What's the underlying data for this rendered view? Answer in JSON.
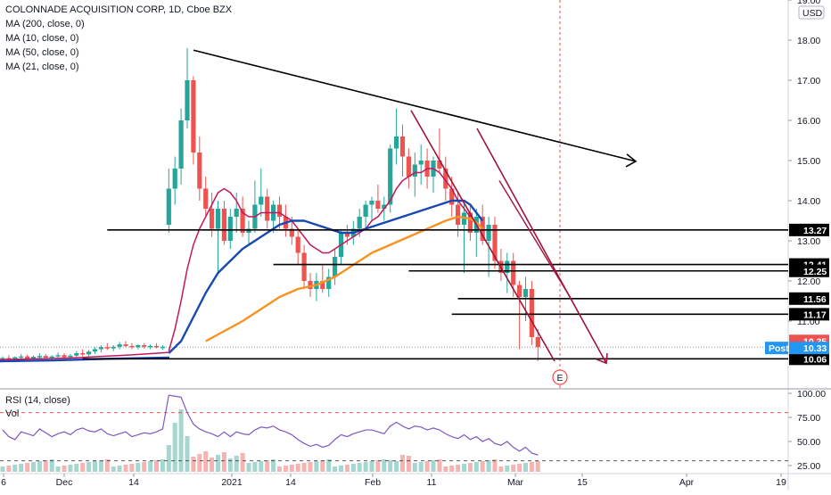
{
  "legend": {
    "title": "COLONNADE ACQUISITION CORP, 1D, Cboe BZX",
    "ma200": "MA (200, close, 0)",
    "ma10": "MA (10, close, 0)",
    "ma50": "MA (50, close, 0)",
    "ma21": "MA (21, close, 0)"
  },
  "rsi_legend": {
    "label": "RSI (14, close)",
    "vol": "Vol"
  },
  "currency_badge": "USD",
  "colors": {
    "up": "#26a69a",
    "down": "#ef5350",
    "ma_blue": "#1848b0",
    "ma_orange": "#f7931e",
    "ma_crimson": "#c2185b",
    "trend": "#000000",
    "channel": "#a0143c",
    "rsi_line": "#7e57c2",
    "level_badge": "#000000",
    "price_badge": "#ef5350",
    "post_badge": "#2196f3"
  },
  "chart_data": {
    "type": "candlestick",
    "y_axis": {
      "ticks": [
        "19.00",
        "18.00",
        "17.00",
        "16.00",
        "15.00",
        "14.00",
        "13.00",
        "12.00",
        "11.00"
      ],
      "ylim": [
        9.7,
        19.0
      ]
    },
    "x_axis": {
      "ticks": [
        "6",
        "Dec",
        "14",
        "2021",
        "14",
        "Feb",
        "11",
        "Mar",
        "15",
        "Apr",
        "19"
      ]
    },
    "candles": [
      {
        "o": 10.05,
        "h": 10.12,
        "l": 10.0,
        "c": 10.08
      },
      {
        "o": 10.08,
        "h": 10.15,
        "l": 10.02,
        "c": 10.06
      },
      {
        "o": 10.06,
        "h": 10.12,
        "l": 10.0,
        "c": 10.1
      },
      {
        "o": 10.1,
        "h": 10.18,
        "l": 10.05,
        "c": 10.12
      },
      {
        "o": 10.12,
        "h": 10.16,
        "l": 10.04,
        "c": 10.07
      },
      {
        "o": 10.07,
        "h": 10.14,
        "l": 10.02,
        "c": 10.11
      },
      {
        "o": 10.11,
        "h": 10.2,
        "l": 10.06,
        "c": 10.13
      },
      {
        "o": 10.13,
        "h": 10.18,
        "l": 10.05,
        "c": 10.09
      },
      {
        "o": 10.09,
        "h": 10.15,
        "l": 10.04,
        "c": 10.12
      },
      {
        "o": 10.12,
        "h": 10.22,
        "l": 10.08,
        "c": 10.15
      },
      {
        "o": 10.15,
        "h": 10.2,
        "l": 10.08,
        "c": 10.1
      },
      {
        "o": 10.1,
        "h": 10.18,
        "l": 10.05,
        "c": 10.14
      },
      {
        "o": 10.14,
        "h": 10.25,
        "l": 10.1,
        "c": 10.2
      },
      {
        "o": 10.2,
        "h": 10.3,
        "l": 10.12,
        "c": 10.17
      },
      {
        "o": 10.17,
        "h": 10.28,
        "l": 10.12,
        "c": 10.24
      },
      {
        "o": 10.24,
        "h": 10.35,
        "l": 10.18,
        "c": 10.3
      },
      {
        "o": 10.3,
        "h": 10.4,
        "l": 10.22,
        "c": 10.35
      },
      {
        "o": 10.35,
        "h": 10.45,
        "l": 10.28,
        "c": 10.32
      },
      {
        "o": 10.32,
        "h": 10.4,
        "l": 10.25,
        "c": 10.36
      },
      {
        "o": 10.36,
        "h": 10.48,
        "l": 10.3,
        "c": 10.42
      },
      {
        "o": 10.42,
        "h": 10.5,
        "l": 10.35,
        "c": 10.38
      },
      {
        "o": 10.38,
        "h": 10.45,
        "l": 10.3,
        "c": 10.35
      },
      {
        "o": 10.35,
        "h": 10.42,
        "l": 10.3,
        "c": 10.4
      },
      {
        "o": 10.4,
        "h": 10.45,
        "l": 10.32,
        "c": 10.36
      },
      {
        "o": 10.36,
        "h": 10.42,
        "l": 10.3,
        "c": 10.38
      },
      {
        "o": 10.38,
        "h": 10.45,
        "l": 10.32,
        "c": 10.35
      },
      {
        "o": 10.35,
        "h": 10.4,
        "l": 10.28,
        "c": 10.36
      },
      {
        "o": 13.4,
        "h": 14.8,
        "l": 13.2,
        "c": 14.3
      },
      {
        "o": 14.3,
        "h": 15.1,
        "l": 13.9,
        "c": 14.8
      },
      {
        "o": 14.8,
        "h": 16.3,
        "l": 14.4,
        "c": 16.0
      },
      {
        "o": 16.0,
        "h": 17.8,
        "l": 15.8,
        "c": 17.0
      },
      {
        "o": 17.0,
        "h": 17.1,
        "l": 14.9,
        "c": 15.2
      },
      {
        "o": 15.2,
        "h": 15.6,
        "l": 14.0,
        "c": 14.3
      },
      {
        "o": 14.3,
        "h": 14.6,
        "l": 13.6,
        "c": 13.8
      },
      {
        "o": 13.8,
        "h": 14.2,
        "l": 13.1,
        "c": 13.3
      },
      {
        "o": 13.3,
        "h": 14.0,
        "l": 12.2,
        "c": 13.8
      },
      {
        "o": 13.8,
        "h": 14.0,
        "l": 12.9,
        "c": 13.0
      },
      {
        "o": 13.0,
        "h": 13.8,
        "l": 12.8,
        "c": 13.6
      },
      {
        "o": 13.6,
        "h": 14.2,
        "l": 13.2,
        "c": 13.8
      },
      {
        "o": 13.8,
        "h": 14.1,
        "l": 13.1,
        "c": 13.2
      },
      {
        "o": 13.2,
        "h": 13.5,
        "l": 12.9,
        "c": 13.3
      },
      {
        "o": 13.3,
        "h": 14.5,
        "l": 13.2,
        "c": 13.9
      },
      {
        "o": 13.9,
        "h": 14.8,
        "l": 13.6,
        "c": 14.1
      },
      {
        "o": 14.1,
        "h": 14.3,
        "l": 13.3,
        "c": 13.5
      },
      {
        "o": 13.5,
        "h": 14.0,
        "l": 13.2,
        "c": 13.9
      },
      {
        "o": 13.9,
        "h": 14.1,
        "l": 13.3,
        "c": 13.6
      },
      {
        "o": 13.6,
        "h": 13.9,
        "l": 13.1,
        "c": 13.3
      },
      {
        "o": 13.3,
        "h": 13.6,
        "l": 12.9,
        "c": 13.1
      },
      {
        "o": 13.1,
        "h": 13.3,
        "l": 12.4,
        "c": 12.7
      },
      {
        "o": 12.7,
        "h": 12.9,
        "l": 11.8,
        "c": 12.0
      },
      {
        "o": 12.0,
        "h": 12.2,
        "l": 11.6,
        "c": 11.8
      },
      {
        "o": 11.8,
        "h": 12.2,
        "l": 11.5,
        "c": 12.0
      },
      {
        "o": 12.0,
        "h": 12.4,
        "l": 11.7,
        "c": 11.8
      },
      {
        "o": 11.8,
        "h": 12.3,
        "l": 11.6,
        "c": 12.1
      },
      {
        "o": 12.1,
        "h": 12.8,
        "l": 11.9,
        "c": 12.6
      },
      {
        "o": 12.6,
        "h": 13.3,
        "l": 12.4,
        "c": 13.2
      },
      {
        "o": 13.2,
        "h": 13.4,
        "l": 12.9,
        "c": 13.1
      },
      {
        "o": 13.1,
        "h": 13.5,
        "l": 12.9,
        "c": 13.3
      },
      {
        "o": 13.3,
        "h": 13.8,
        "l": 13.1,
        "c": 13.6
      },
      {
        "o": 13.6,
        "h": 14.0,
        "l": 13.3,
        "c": 13.9
      },
      {
        "o": 13.9,
        "h": 14.1,
        "l": 13.5,
        "c": 14.0
      },
      {
        "o": 14.0,
        "h": 14.4,
        "l": 13.7,
        "c": 13.8
      },
      {
        "o": 13.8,
        "h": 14.1,
        "l": 13.5,
        "c": 13.9
      },
      {
        "o": 13.9,
        "h": 15.4,
        "l": 13.7,
        "c": 15.3
      },
      {
        "o": 15.3,
        "h": 16.3,
        "l": 14.9,
        "c": 15.6
      },
      {
        "o": 15.6,
        "h": 15.9,
        "l": 14.6,
        "c": 15.1
      },
      {
        "o": 15.1,
        "h": 15.3,
        "l": 14.3,
        "c": 14.6
      },
      {
        "o": 14.6,
        "h": 15.2,
        "l": 14.1,
        "c": 14.9
      },
      {
        "o": 14.9,
        "h": 15.4,
        "l": 14.4,
        "c": 15.0
      },
      {
        "o": 15.0,
        "h": 15.3,
        "l": 14.3,
        "c": 14.6
      },
      {
        "o": 14.6,
        "h": 15.1,
        "l": 14.2,
        "c": 15.0
      },
      {
        "o": 15.0,
        "h": 15.8,
        "l": 14.7,
        "c": 14.8
      },
      {
        "o": 14.8,
        "h": 15.1,
        "l": 14.0,
        "c": 14.3
      },
      {
        "o": 14.3,
        "h": 14.6,
        "l": 13.6,
        "c": 13.9
      },
      {
        "o": 13.9,
        "h": 14.2,
        "l": 13.1,
        "c": 13.4
      },
      {
        "o": 13.4,
        "h": 13.9,
        "l": 12.2,
        "c": 13.7
      },
      {
        "o": 13.7,
        "h": 13.9,
        "l": 13.0,
        "c": 13.2
      },
      {
        "o": 13.2,
        "h": 13.8,
        "l": 12.6,
        "c": 13.6
      },
      {
        "o": 13.6,
        "h": 13.9,
        "l": 12.9,
        "c": 13.0
      },
      {
        "o": 13.0,
        "h": 13.6,
        "l": 12.1,
        "c": 13.4
      },
      {
        "o": 13.4,
        "h": 13.6,
        "l": 12.3,
        "c": 12.5
      },
      {
        "o": 12.5,
        "h": 12.8,
        "l": 12.0,
        "c": 12.2
      },
      {
        "o": 12.2,
        "h": 12.7,
        "l": 11.7,
        "c": 12.5
      },
      {
        "o": 12.5,
        "h": 12.7,
        "l": 11.6,
        "c": 11.9
      },
      {
        "o": 11.9,
        "h": 12.0,
        "l": 10.3,
        "c": 11.6
      },
      {
        "o": 11.6,
        "h": 12.1,
        "l": 11.0,
        "c": 11.8
      },
      {
        "o": 11.8,
        "h": 12.0,
        "l": 10.4,
        "c": 10.6
      },
      {
        "o": 10.6,
        "h": 10.8,
        "l": 10.0,
        "c": 10.35
      }
    ],
    "moving_averages": [
      {
        "name": "MA (10, close, 0)",
        "color": "crimson",
        "points": [
          [
            27,
            10.25
          ],
          [
            28,
            10.8
          ],
          [
            29,
            11.5
          ],
          [
            30,
            12.3
          ],
          [
            31,
            12.9
          ],
          [
            32,
            13.3
          ],
          [
            33,
            13.6
          ],
          [
            34,
            13.9
          ],
          [
            35,
            14.2
          ],
          [
            36,
            14.3
          ],
          [
            37,
            14.2
          ],
          [
            38,
            14.0
          ],
          [
            39,
            13.7
          ],
          [
            40,
            13.6
          ],
          [
            41,
            13.6
          ],
          [
            42,
            13.7
          ],
          [
            43,
            13.7
          ],
          [
            44,
            13.7
          ],
          [
            45,
            13.7
          ],
          [
            46,
            13.6
          ],
          [
            47,
            13.5
          ],
          [
            48,
            13.3
          ],
          [
            49,
            13.1
          ],
          [
            50,
            12.9
          ],
          [
            51,
            12.8
          ],
          [
            52,
            12.7
          ],
          [
            53,
            12.7
          ],
          [
            54,
            12.8
          ],
          [
            55,
            12.9
          ],
          [
            56,
            13.0
          ],
          [
            57,
            13.1
          ],
          [
            58,
            13.2
          ],
          [
            59,
            13.3
          ],
          [
            60,
            13.5
          ],
          [
            61,
            13.6
          ],
          [
            62,
            13.8
          ],
          [
            63,
            14.0
          ],
          [
            64,
            14.3
          ],
          [
            65,
            14.5
          ],
          [
            66,
            14.6
          ],
          [
            67,
            14.7
          ],
          [
            68,
            14.7
          ],
          [
            69,
            14.8
          ],
          [
            70,
            14.8
          ],
          [
            71,
            14.7
          ],
          [
            72,
            14.5
          ],
          [
            73,
            14.3
          ],
          [
            74,
            14.0
          ],
          [
            75,
            13.8
          ],
          [
            76,
            13.6
          ]
        ]
      },
      {
        "name": "MA (21, close, 0)",
        "color": "blue",
        "points": [
          [
            27,
            10.2
          ],
          [
            29,
            10.5
          ],
          [
            31,
            11.1
          ],
          [
            33,
            11.7
          ],
          [
            35,
            12.2
          ],
          [
            37,
            12.5
          ],
          [
            39,
            12.8
          ],
          [
            41,
            13.0
          ],
          [
            43,
            13.2
          ],
          [
            45,
            13.4
          ],
          [
            47,
            13.5
          ],
          [
            49,
            13.5
          ],
          [
            51,
            13.4
          ],
          [
            53,
            13.3
          ],
          [
            55,
            13.2
          ],
          [
            57,
            13.2
          ],
          [
            59,
            13.3
          ],
          [
            61,
            13.4
          ],
          [
            63,
            13.5
          ],
          [
            65,
            13.6
          ],
          [
            67,
            13.7
          ],
          [
            69,
            13.8
          ],
          [
            71,
            13.9
          ],
          [
            73,
            14.0
          ],
          [
            75,
            14.0
          ],
          [
            76,
            13.9
          ],
          [
            77,
            13.7
          ],
          [
            78,
            13.5
          ]
        ]
      },
      {
        "name": "MA (50, close, 0)",
        "color": "orange",
        "points": [
          [
            33,
            10.5
          ],
          [
            36,
            10.75
          ],
          [
            39,
            11.0
          ],
          [
            42,
            11.3
          ],
          [
            45,
            11.6
          ],
          [
            48,
            11.8
          ],
          [
            51,
            11.9
          ],
          [
            54,
            12.1
          ],
          [
            57,
            12.4
          ],
          [
            60,
            12.7
          ],
          [
            63,
            12.9
          ],
          [
            66,
            13.1
          ],
          [
            69,
            13.3
          ],
          [
            72,
            13.5
          ],
          [
            74,
            13.6
          ],
          [
            76,
            13.55
          ],
          [
            77,
            13.45
          ],
          [
            78,
            13.3
          ]
        ]
      }
    ],
    "horizontal_levels": [
      {
        "price": 13.27,
        "label": "13.27",
        "from_bar": 17
      },
      {
        "price": 12.41,
        "label": "12.41",
        "from_bar": 44
      },
      {
        "price": 12.25,
        "label": "12.25",
        "from_bar": 66
      },
      {
        "price": 11.56,
        "label": "11.56",
        "from_bar": 74
      },
      {
        "price": 11.17,
        "label": "11.17",
        "from_bar": 73
      },
      {
        "price": 10.06,
        "label": "10.06",
        "from_bar": 13
      }
    ],
    "price_badges": [
      {
        "label": "10.35",
        "kind": "last"
      },
      {
        "label": "Post",
        "value": "10.33",
        "kind": "post"
      }
    ],
    "event_marker": "E",
    "rsi": {
      "ticks": [
        "100.00",
        "75.00",
        "50.00",
        "25.00"
      ],
      "overbought": 80,
      "oversold": 30,
      "values": [
        62,
        55,
        52,
        60,
        58,
        56,
        63,
        59,
        55,
        58,
        60,
        57,
        62,
        64,
        61,
        60,
        63,
        58,
        56,
        58,
        60,
        55,
        57,
        59,
        58,
        60,
        63,
        98,
        97,
        96,
        80,
        68,
        63,
        60,
        58,
        55,
        60,
        55,
        60,
        58,
        57,
        62,
        65,
        64,
        66,
        62,
        60,
        57,
        52,
        48,
        45,
        47,
        44,
        46,
        52,
        57,
        55,
        58,
        60,
        62,
        62,
        60,
        58,
        66,
        70,
        66,
        63,
        66,
        65,
        62,
        64,
        62,
        58,
        55,
        53,
        57,
        52,
        55,
        50,
        53,
        48,
        46,
        50,
        44,
        40,
        44,
        38,
        36
      ]
    }
  }
}
